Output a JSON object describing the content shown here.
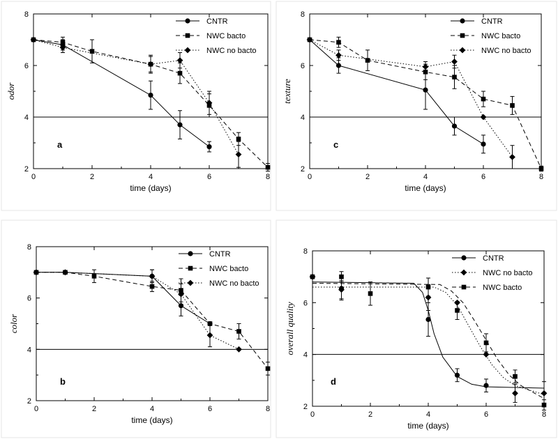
{
  "chart_data": [
    {
      "type": "line",
      "panel_label": "a",
      "xlabel": "time (days)",
      "ylabel": "odor",
      "xlim": [
        0,
        8
      ],
      "ylim": [
        2,
        8
      ],
      "xticks": [
        0,
        2,
        4,
        6,
        8
      ],
      "yticks": [
        2,
        4,
        6,
        8
      ],
      "reference_y": 4,
      "legend_position": "top-right",
      "series": [
        {
          "name": "CNTR",
          "marker": "circle",
          "dash": "solid",
          "x": [
            0,
            1,
            4,
            5,
            6
          ],
          "y": [
            7,
            6.8,
            4.85,
            3.7,
            2.85
          ],
          "err": [
            0,
            0.2,
            0.55,
            0.55,
            0.2
          ]
        },
        {
          "name": "NWC bacto",
          "marker": "square",
          "dash": "dashed",
          "x": [
            0,
            1,
            2,
            4,
            5,
            6,
            7,
            8
          ],
          "y": [
            7,
            6.9,
            6.55,
            6.05,
            5.7,
            4.45,
            3.15,
            2.05
          ],
          "err": [
            0,
            0.2,
            0.45,
            0.35,
            0.4,
            0.45,
            0.25,
            0.15
          ]
        },
        {
          "name": "NWC no bacto",
          "marker": "diamond",
          "dash": "dotted",
          "x": [
            0,
            1,
            4,
            5,
            6,
            7
          ],
          "y": [
            7,
            6.7,
            6.05,
            6.2,
            4.55,
            2.55
          ],
          "err": [
            0,
            0.2,
            0.3,
            0.3,
            0.45,
            0.5
          ]
        }
      ]
    },
    {
      "type": "line",
      "panel_label": "c",
      "xlabel": "time (days)",
      "ylabel": "texture",
      "xlim": [
        0,
        8
      ],
      "ylim": [
        2,
        8
      ],
      "xticks": [
        0,
        2,
        4,
        6,
        8
      ],
      "yticks": [
        2,
        4,
        6,
        8
      ],
      "reference_y": 4,
      "legend_position": "top-right",
      "series": [
        {
          "name": "CNTR",
          "marker": "circle",
          "dash": "solid",
          "x": [
            0,
            1,
            4,
            5,
            6
          ],
          "y": [
            7,
            6,
            5.05,
            3.65,
            2.95
          ],
          "err": [
            0,
            0.3,
            0.75,
            0.35,
            0.35
          ]
        },
        {
          "name": "NWC bacto",
          "marker": "square",
          "dash": "dashed",
          "x": [
            0,
            1,
            2,
            4,
            5,
            6,
            7,
            8
          ],
          "y": [
            7,
            6.9,
            6.2,
            5.75,
            5.55,
            4.7,
            4.45,
            2
          ],
          "err": [
            0,
            0.2,
            0.4,
            0.3,
            0.45,
            0.3,
            0.35,
            0.1
          ]
        },
        {
          "name": "NWC no bacto",
          "marker": "diamond",
          "dash": "dotted",
          "x": [
            0,
            1,
            4,
            5,
            6,
            7
          ],
          "y": [
            7,
            6.4,
            5.95,
            6.15,
            4,
            2.45
          ],
          "err": [
            0,
            0.2,
            0.2,
            0.25,
            0,
            0.45
          ]
        }
      ]
    },
    {
      "type": "line",
      "panel_label": "b",
      "xlabel": "time (days)",
      "ylabel": "color",
      "xlim": [
        0,
        8
      ],
      "ylim": [
        2,
        8
      ],
      "xticks": [
        0,
        2,
        4,
        6,
        8
      ],
      "yticks": [
        2,
        4,
        6,
        8
      ],
      "reference_y": 4,
      "legend_position": "top-right",
      "series": [
        {
          "name": "CNTR",
          "marker": "circle",
          "dash": "solid",
          "x": [
            0,
            1,
            4,
            5,
            6
          ],
          "y": [
            7,
            7,
            6.85,
            5.7,
            5
          ],
          "err": [
            0,
            0,
            0.25,
            0.4,
            0
          ]
        },
        {
          "name": "NWC bacto",
          "marker": "square",
          "dash": "dashed",
          "x": [
            0,
            1,
            2,
            4,
            5,
            6,
            7,
            8
          ],
          "y": [
            7,
            7,
            6.85,
            6.45,
            6.3,
            5,
            4.7,
            3.25
          ],
          "err": [
            0,
            0,
            0.25,
            0.2,
            0.45,
            0,
            0.3,
            0.25
          ]
        },
        {
          "name": "NWC no bacto",
          "marker": "diamond",
          "dash": "dotted",
          "x": [
            0,
            1,
            4,
            5,
            6,
            7
          ],
          "y": [
            7,
            7,
            6.85,
            6.15,
            4.55,
            4
          ],
          "err": [
            0,
            0,
            0.25,
            0.4,
            0.45,
            0
          ]
        }
      ]
    },
    {
      "type": "line",
      "panel_label": "d",
      "xlabel": "time (days)",
      "ylabel": "overall quality",
      "xlim": [
        0,
        8
      ],
      "ylim": [
        2,
        8
      ],
      "xticks": [
        0,
        2,
        4,
        6,
        8
      ],
      "yticks": [
        2,
        4,
        6,
        8
      ],
      "reference_y": 4,
      "legend_position": "top-right",
      "series": [
        {
          "name": "CNTR",
          "marker": "circle",
          "dash": "solid",
          "x": [
            0,
            1,
            4,
            5,
            6
          ],
          "y": [
            7,
            6.55,
            5.35,
            3.2,
            2.8
          ],
          "err": [
            0,
            0.45,
            0.65,
            0.25,
            0.25
          ],
          "fit": {
            "x": [
              0,
              3.5,
              3.8,
              4,
              4.2,
              4.5,
              5,
              5.5,
              6,
              8
            ],
            "y": [
              6.8,
              6.75,
              6.4,
              5.7,
              4.8,
              3.9,
              3.15,
              2.85,
              2.75,
              2.7
            ]
          }
        },
        {
          "name": "NWC no bacto",
          "marker": "diamond",
          "dash": "dotted",
          "x": [
            0,
            1,
            4,
            5,
            6,
            7,
            8
          ],
          "y": [
            7,
            6.5,
            6.2,
            6,
            4,
            2.5,
            2.5
          ],
          "err": [
            0,
            0.35,
            0.5,
            0,
            0,
            0.35,
            0.45
          ],
          "fit": {
            "x": [
              0,
              4.2,
              4.6,
              5,
              5.4,
              5.8,
              6.2,
              6.6,
              7,
              8
            ],
            "y": [
              6.6,
              6.6,
              6.4,
              5.9,
              5.1,
              4.3,
              3.6,
              3.1,
              2.8,
              2.45
            ]
          }
        },
        {
          "name": "NWC bacto",
          "marker": "square",
          "dash": "dashed",
          "x": [
            0,
            1,
            2,
            4,
            5,
            6,
            7,
            8
          ],
          "y": [
            7,
            7,
            6.35,
            6.6,
            5.7,
            4.45,
            3.15,
            2.05
          ],
          "err": [
            0,
            0.2,
            0.45,
            0.35,
            0.35,
            0.35,
            0.25,
            0.2
          ],
          "fit": {
            "x": [
              0,
              4.4,
              4.8,
              5.2,
              5.6,
              6,
              6.4,
              6.8,
              7.2,
              8
            ],
            "y": [
              6.75,
              6.7,
              6.45,
              6,
              5.3,
              4.55,
              3.8,
              3.2,
              2.8,
              2.3
            ]
          }
        }
      ]
    }
  ]
}
